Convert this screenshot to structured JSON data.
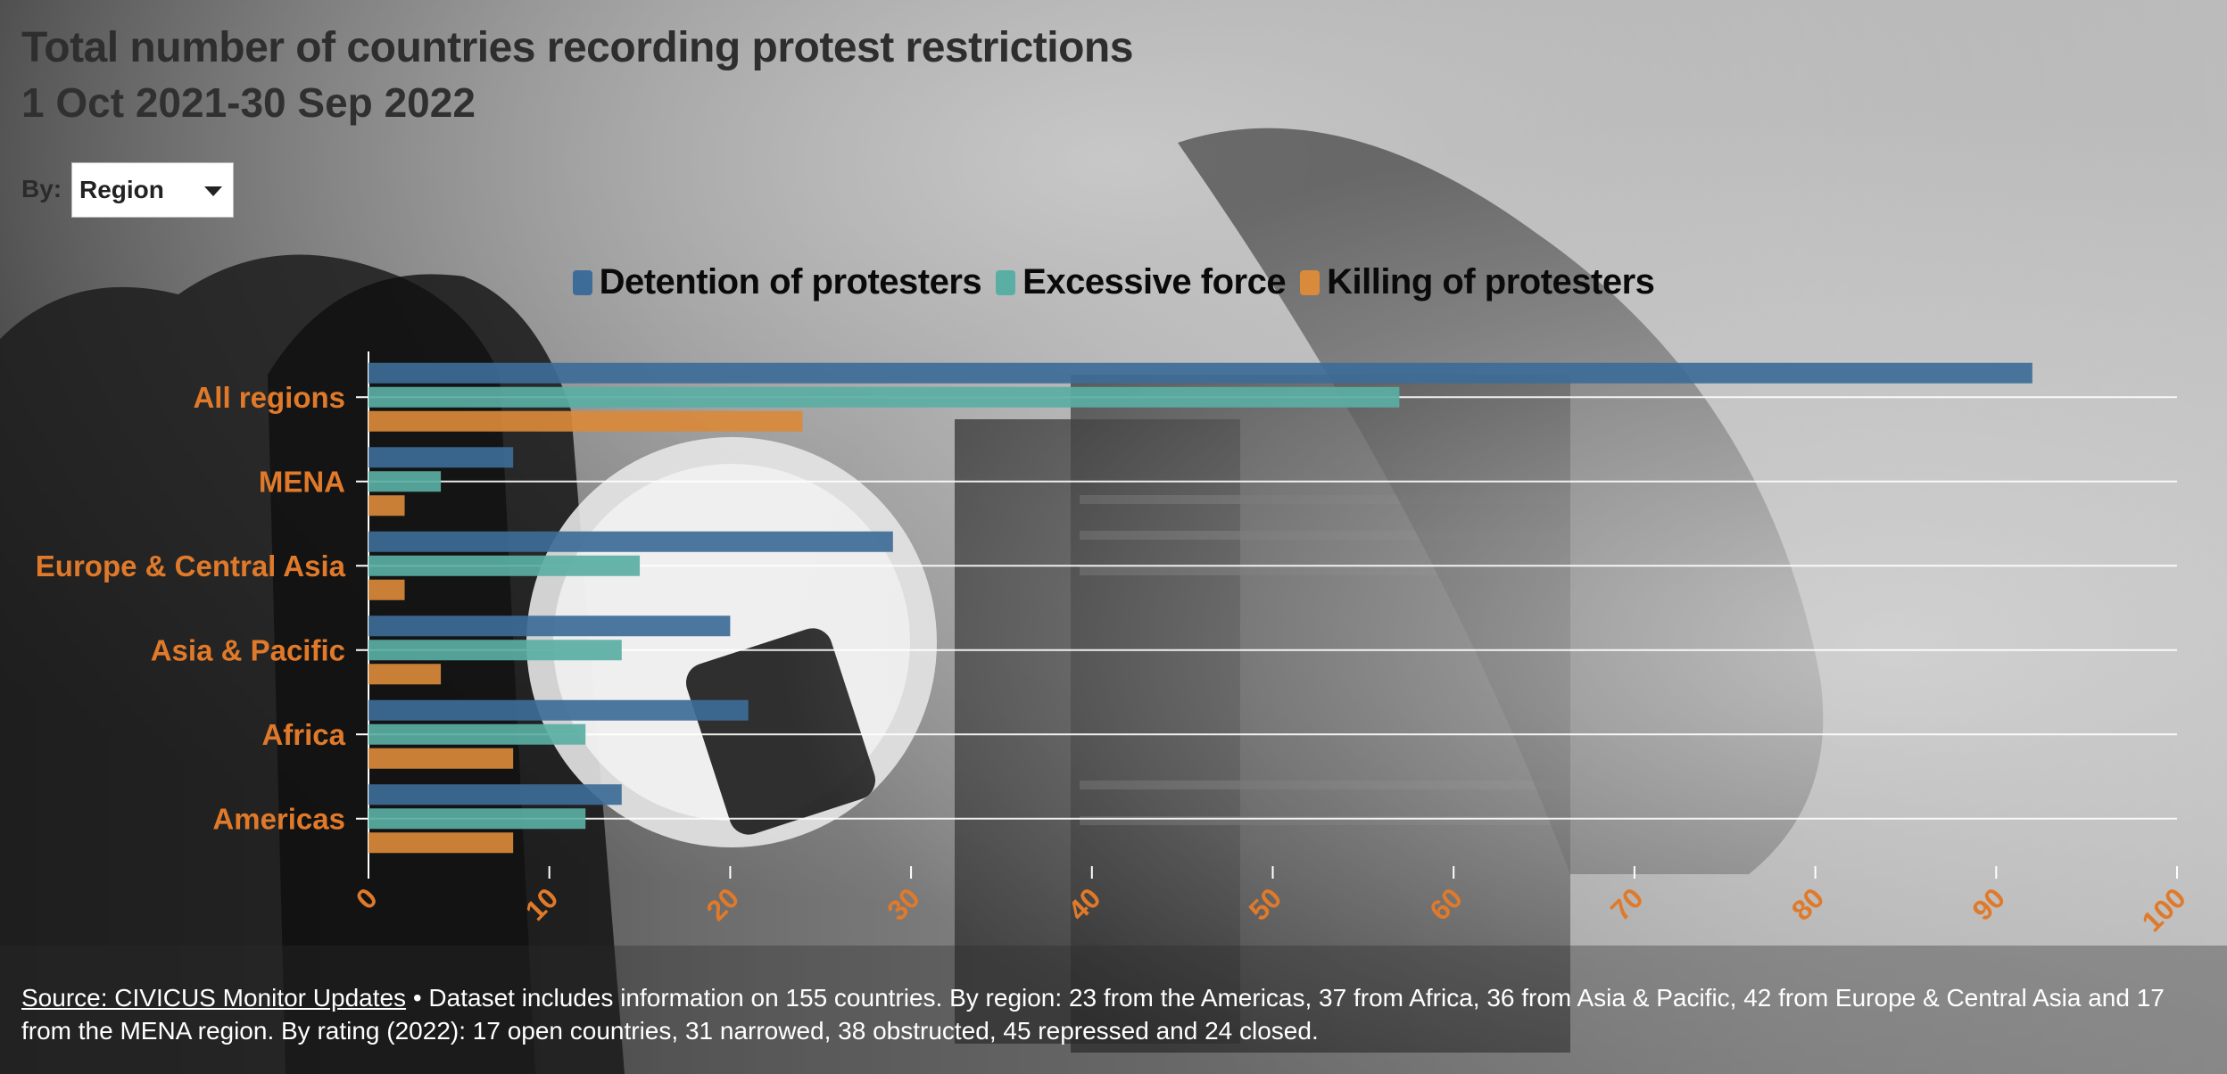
{
  "title": "Total number of countries recording protest restrictions",
  "subtitle": "1 Oct 2021-30 Sep 2022",
  "filter": {
    "label": "By:",
    "selected": "Region"
  },
  "colors": {
    "detention": "#3d6c98",
    "excessive_force": "#5aaea4",
    "killing": "#d98a3a",
    "category_label": "#e07a2a",
    "grid": "#ffffff"
  },
  "chart_data": {
    "type": "bar",
    "orientation": "horizontal",
    "title": "Total number of countries recording protest restrictions",
    "subtitle": "1 Oct 2021-30 Sep 2022",
    "categories": [
      "All regions",
      "MENA",
      "Europe & Central Asia",
      "Asia & Pacific",
      "Africa",
      "Americas"
    ],
    "series": [
      {
        "name": "Detention of protesters",
        "values": [
          92,
          8,
          29,
          20,
          21,
          14
        ]
      },
      {
        "name": "Excessive force",
        "values": [
          57,
          4,
          15,
          14,
          12,
          12
        ]
      },
      {
        "name": "Killing of protesters",
        "values": [
          24,
          2,
          2,
          4,
          8,
          8
        ]
      }
    ],
    "xlim": [
      0,
      100
    ],
    "xticks": [
      0,
      10,
      20,
      30,
      40,
      50,
      60,
      70,
      80,
      90,
      100
    ],
    "grid": true,
    "legend": "top-center",
    "xlabel": "",
    "ylabel": ""
  },
  "footer": {
    "source_link": "Source: CIVICUS Monitor Updates",
    "text": " • Dataset includes information on 155 countries. By region: 23 from the Americas, 37 from Africa, 36 from Asia & Pacific, 42 from Europe & Central Asia and 17 from the MENA region. By rating (2022): 17 open countries, 31 narrowed, 38 obstructed, 45 repressed and 24 closed."
  }
}
